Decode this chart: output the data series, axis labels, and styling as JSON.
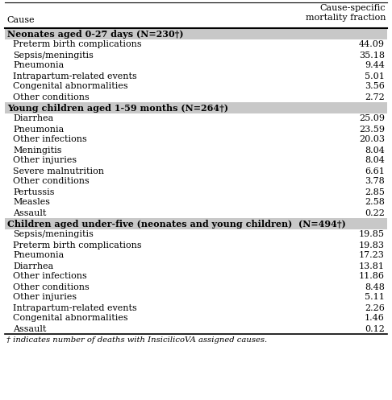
{
  "col1_header": "Cause",
  "col2_header": "Cause-specific\nmortality fraction",
  "sections": [
    {
      "header": "Neonates aged 0-27 days (N=230†)",
      "rows": [
        [
          "Preterm birth complications",
          "44.09"
        ],
        [
          "Sepsis/meningitis",
          "35.18"
        ],
        [
          "Pneumonia",
          "9.44"
        ],
        [
          "Intrapartum-related events",
          "5.01"
        ],
        [
          "Congenital abnormalities",
          "3.56"
        ],
        [
          "Other conditions",
          "2.72"
        ]
      ]
    },
    {
      "header": "Young children aged 1-59 months (N=264†)",
      "rows": [
        [
          "Diarrhea",
          "25.09"
        ],
        [
          "Pneumonia",
          "23.59"
        ],
        [
          "Other infections",
          "20.03"
        ],
        [
          "Meningitis",
          "8.04"
        ],
        [
          "Other injuries",
          "8.04"
        ],
        [
          "Severe malnutrition",
          "6.61"
        ],
        [
          "Other conditions",
          "3.78"
        ],
        [
          "Pertussis",
          "2.85"
        ],
        [
          "Measles",
          "2.58"
        ],
        [
          "Assault",
          "0.22"
        ]
      ]
    },
    {
      "header": "Children aged under-five (neonates and young children)  (N=494†)",
      "rows": [
        [
          "Sepsis/meningitis",
          "19.85"
        ],
        [
          "Preterm birth complications",
          "19.83"
        ],
        [
          "Pneumonia",
          "17.23"
        ],
        [
          "Diarrhea",
          "13.81"
        ],
        [
          "Other infections",
          "11.86"
        ],
        [
          "Other conditions",
          "8.48"
        ],
        [
          "Other injuries",
          "5.11"
        ],
        [
          "Intrapartum-related events",
          "2.26"
        ],
        [
          "Congenital abnormalities",
          "1.46"
        ],
        [
          "Assault",
          "0.12"
        ]
      ]
    }
  ],
  "footnote": "† indicates number of deaths with InsicilicoVA assigned causes.",
  "header_bg": "#c8c8c8",
  "font_size": 8.0,
  "header_font_size": 8.0
}
